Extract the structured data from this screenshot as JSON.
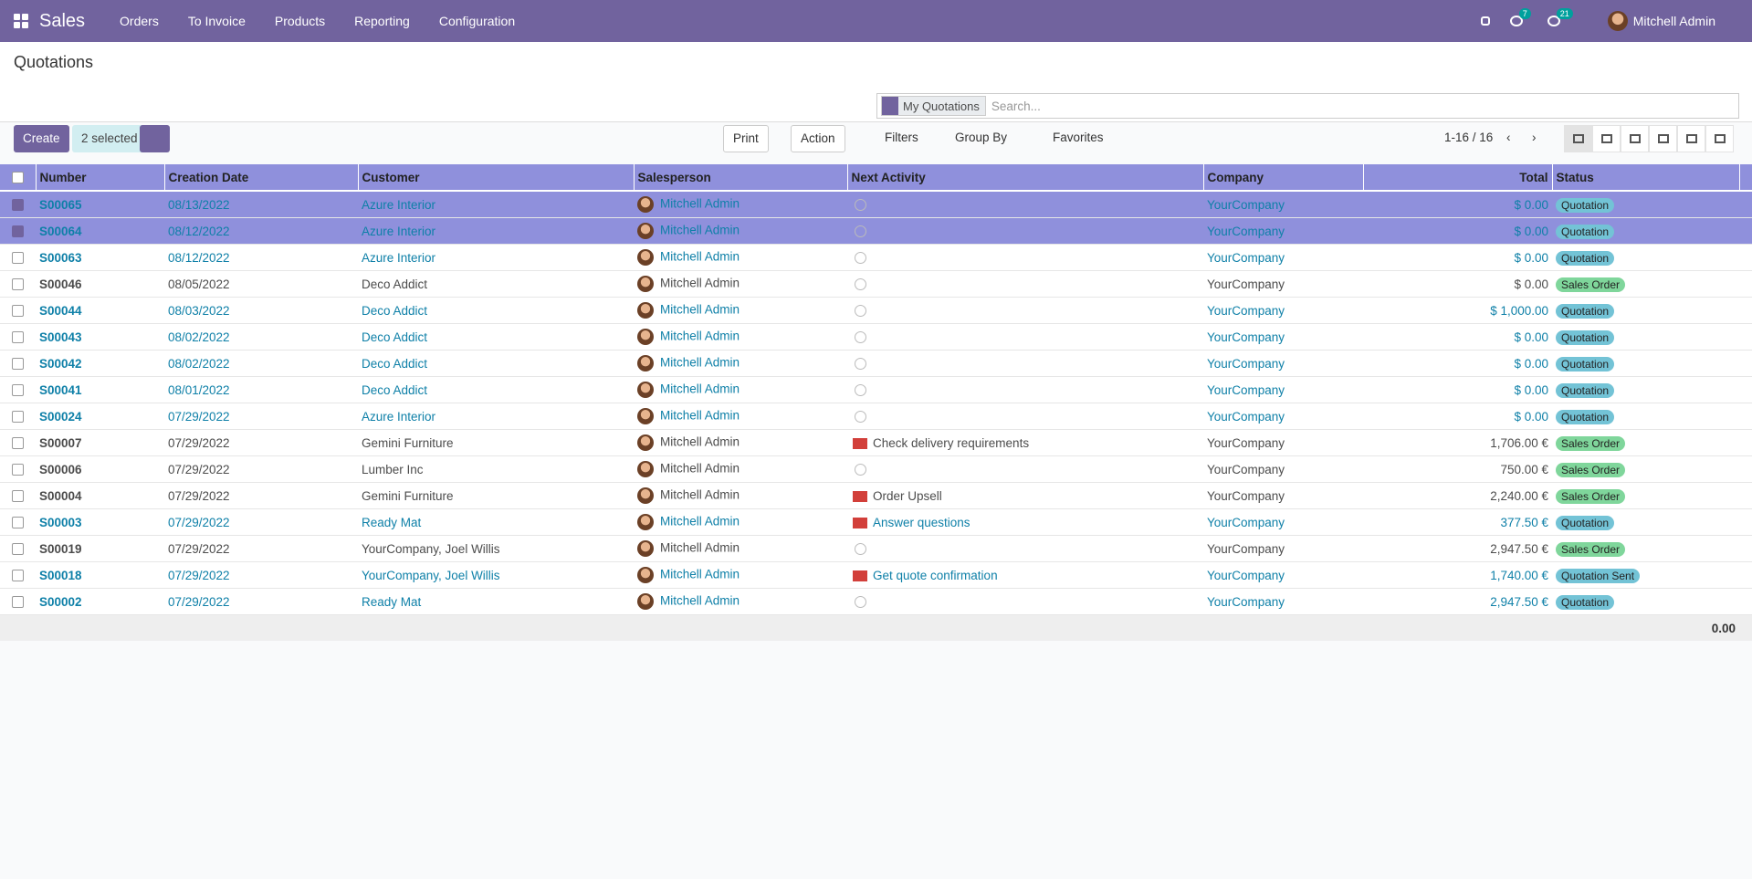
{
  "navbar": {
    "app": "Sales",
    "menus": [
      "Orders",
      "To Invoice",
      "Products",
      "Reporting",
      "Configuration"
    ],
    "messages_count": "7",
    "activities_count": "21",
    "user": "Mitchell Admin"
  },
  "control_panel": {
    "title": "Quotations",
    "create": "Create",
    "selected": "2 selected",
    "print": "Print",
    "action": "Action",
    "facet": "My Quotations",
    "search_placeholder": "Search...",
    "filters": "Filters",
    "group_by": "Group By",
    "favorites": "Favorites",
    "pager": "1-16 / 16"
  },
  "table": {
    "columns": [
      "Number",
      "Creation Date",
      "Customer",
      "Salesperson",
      "Next Activity",
      "Company",
      "Total",
      "Status"
    ],
    "rows": [
      {
        "selected": true,
        "number": "S00065",
        "date": "08/13/2022",
        "customer": "Azure Interior",
        "salesperson": "Mitchell Admin",
        "activity": null,
        "company": "YourCompany",
        "total": "$ 0.00",
        "status": "Quotation"
      },
      {
        "selected": true,
        "number": "S00064",
        "date": "08/12/2022",
        "customer": "Azure Interior",
        "salesperson": "Mitchell Admin",
        "activity": null,
        "company": "YourCompany",
        "total": "$ 0.00",
        "status": "Quotation"
      },
      {
        "selected": false,
        "number": "S00063",
        "date": "08/12/2022",
        "customer": "Azure Interior",
        "salesperson": "Mitchell Admin",
        "activity": null,
        "company": "YourCompany",
        "total": "$ 0.00",
        "status": "Quotation"
      },
      {
        "selected": false,
        "number": "S00046",
        "date": "08/05/2022",
        "customer": "Deco Addict",
        "salesperson": "Mitchell Admin",
        "activity": null,
        "company": "YourCompany",
        "total": "$ 0.00",
        "status": "Sales Order"
      },
      {
        "selected": false,
        "number": "S00044",
        "date": "08/03/2022",
        "customer": "Deco Addict",
        "salesperson": "Mitchell Admin",
        "activity": null,
        "company": "YourCompany",
        "total": "$ 1,000.00",
        "status": "Quotation"
      },
      {
        "selected": false,
        "number": "S00043",
        "date": "08/02/2022",
        "customer": "Deco Addict",
        "salesperson": "Mitchell Admin",
        "activity": null,
        "company": "YourCompany",
        "total": "$ 0.00",
        "status": "Quotation"
      },
      {
        "selected": false,
        "number": "S00042",
        "date": "08/02/2022",
        "customer": "Deco Addict",
        "salesperson": "Mitchell Admin",
        "activity": null,
        "company": "YourCompany",
        "total": "$ 0.00",
        "status": "Quotation"
      },
      {
        "selected": false,
        "number": "S00041",
        "date": "08/01/2022",
        "customer": "Deco Addict",
        "salesperson": "Mitchell Admin",
        "activity": null,
        "company": "YourCompany",
        "total": "$ 0.00",
        "status": "Quotation"
      },
      {
        "selected": false,
        "number": "S00024",
        "date": "07/29/2022",
        "customer": "Azure Interior",
        "salesperson": "Mitchell Admin",
        "activity": null,
        "company": "YourCompany",
        "total": "$ 0.00",
        "status": "Quotation"
      },
      {
        "selected": false,
        "number": "S00007",
        "date": "07/29/2022",
        "customer": "Gemini Furniture",
        "salesperson": "Mitchell Admin",
        "activity": "Check delivery requirements",
        "company": "YourCompany",
        "total": "1,706.00 €",
        "status": "Sales Order"
      },
      {
        "selected": false,
        "number": "S00006",
        "date": "07/29/2022",
        "customer": "Lumber Inc",
        "salesperson": "Mitchell Admin",
        "activity": null,
        "company": "YourCompany",
        "total": "750.00 €",
        "status": "Sales Order"
      },
      {
        "selected": false,
        "number": "S00004",
        "date": "07/29/2022",
        "customer": "Gemini Furniture",
        "salesperson": "Mitchell Admin",
        "activity": "Order Upsell",
        "company": "YourCompany",
        "total": "2,240.00 €",
        "status": "Sales Order"
      },
      {
        "selected": false,
        "number": "S00003",
        "date": "07/29/2022",
        "customer": "Ready Mat",
        "salesperson": "Mitchell Admin",
        "activity": "Answer questions",
        "company": "YourCompany",
        "total": "377.50 €",
        "status": "Quotation"
      },
      {
        "selected": false,
        "number": "S00019",
        "date": "07/29/2022",
        "customer": "YourCompany, Joel Willis",
        "salesperson": "Mitchell Admin",
        "activity": null,
        "company": "YourCompany",
        "total": "2,947.50 €",
        "status": "Sales Order"
      },
      {
        "selected": false,
        "number": "S00018",
        "date": "07/29/2022",
        "customer": "YourCompany, Joel Willis",
        "salesperson": "Mitchell Admin",
        "activity": "Get quote confirmation",
        "company": "YourCompany",
        "total": "1,740.00 €",
        "status": "Quotation Sent"
      },
      {
        "selected": false,
        "number": "S00002",
        "date": "07/29/2022",
        "customer": "Ready Mat",
        "salesperson": "Mitchell Admin",
        "activity": null,
        "company": "YourCompany",
        "total": "2,947.50 €",
        "status": "Quotation"
      }
    ],
    "footer_total": "0.00"
  }
}
